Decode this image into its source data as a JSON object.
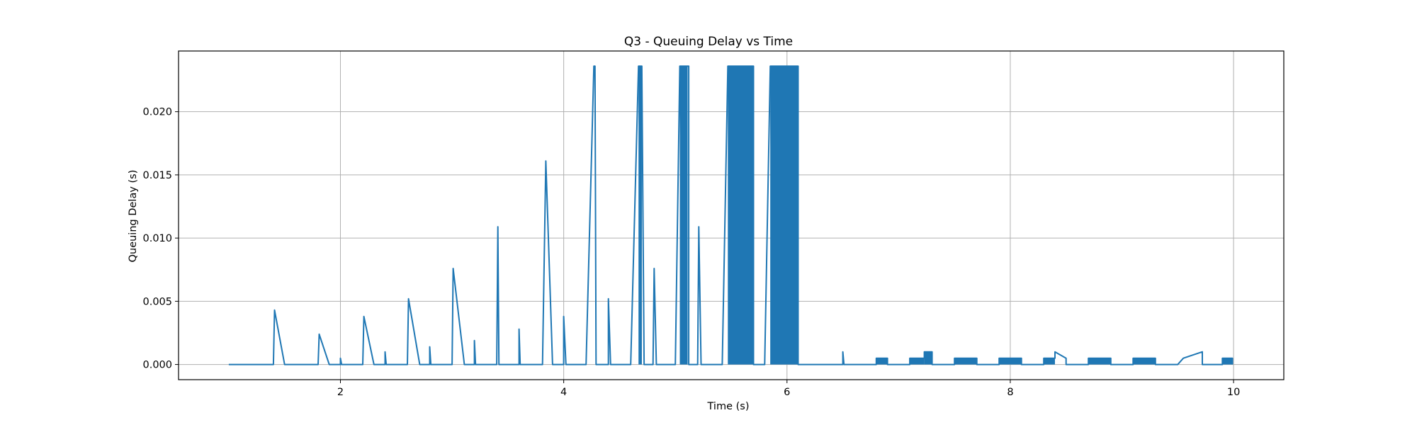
{
  "chart_data": {
    "type": "line",
    "title": "Q3 - Queuing Delay vs Time",
    "xlabel": "Time (s)",
    "ylabel": "Queuing Delay (s)",
    "xlim": [
      0.55,
      10.45
    ],
    "ylim": [
      -0.0012,
      0.0248
    ],
    "xticks": [
      2,
      4,
      6,
      8,
      10
    ],
    "xtick_labels": [
      "2",
      "4",
      "6",
      "8",
      "10"
    ],
    "yticks": [
      0.0,
      0.005,
      0.01,
      0.015,
      0.02
    ],
    "ytick_labels": [
      "0.000",
      "0.005",
      "0.010",
      "0.015",
      "0.020"
    ],
    "grid": true,
    "series": [
      {
        "color": "#1f77b4",
        "x": [
          1.0,
          1.4,
          1.41,
          1.5,
          1.8,
          1.81,
          1.9,
          2.0,
          2.0,
          2.01,
          2.2,
          2.21,
          2.3,
          2.4,
          2.4,
          2.41,
          2.6,
          2.61,
          2.71,
          2.8,
          2.8,
          2.81,
          3.0,
          3.01,
          3.11,
          3.2,
          3.2,
          3.21,
          3.4,
          3.41,
          3.42,
          3.51,
          3.6,
          3.6,
          3.61,
          3.8,
          3.81,
          3.84,
          3.9,
          4.0,
          4.0,
          4.02,
          4.2,
          4.27,
          4.28,
          4.29,
          4.32,
          4.4,
          4.4,
          4.42,
          4.6,
          4.67,
          4.67,
          4.7,
          4.72,
          4.8,
          4.81,
          4.83,
          5.0,
          5.04,
          5.11,
          5.12,
          5.12,
          5.2,
          5.21,
          5.23,
          5.24,
          5.42,
          5.47,
          5.5,
          5.5,
          5.7,
          5.7,
          5.8,
          5.85,
          6.1,
          6.1,
          6.5,
          6.5,
          6.51,
          6.8,
          6.8,
          6.9,
          6.9,
          7.1,
          7.1,
          7.23,
          7.23,
          7.3,
          7.3,
          7.5,
          7.5,
          7.7,
          7.7,
          7.9,
          7.9,
          8.1,
          8.1,
          8.3,
          8.3,
          8.4,
          8.4,
          8.5,
          8.5,
          8.7,
          8.7,
          8.9,
          8.9,
          9.1,
          9.1,
          9.3,
          9.3,
          9.5,
          9.55,
          9.55,
          9.72,
          9.72,
          9.9,
          9.9,
          9.99,
          9.99
        ],
        "y": [
          0.0,
          0.0,
          0.0043,
          0.0,
          0.0,
          0.0024,
          0.0,
          0.0,
          0.0005,
          0.0,
          0.0,
          0.0038,
          0.0,
          0.0,
          0.001,
          0.0,
          0.0,
          0.0052,
          0.0,
          0.0,
          0.0014,
          0.0,
          0.0,
          0.0076,
          0.0,
          0.0,
          0.0019,
          0.0,
          0.0,
          0.0109,
          0.0,
          0.0,
          0.0,
          0.0028,
          0.0,
          0.0,
          0.0,
          0.0161,
          0.0,
          0.0,
          0.0038,
          0.0,
          0.0,
          0.0236,
          0.0236,
          0.0,
          0.0,
          0.0,
          0.0052,
          0.0,
          0.0,
          0.0236,
          0.0236,
          0.0236,
          0.0,
          0.0,
          0.0076,
          0.0,
          0.0,
          0.0236,
          0.0236,
          0.0236,
          0.0,
          0.0,
          0.0109,
          0.0,
          0.0,
          0.0,
          0.0236,
          0.0236,
          0.0236,
          0.0236,
          0.0,
          0.0,
          0.0236,
          0.0236,
          0.0,
          0.0,
          0.001,
          0.0,
          0.0,
          0.0005,
          0.0005,
          0.0,
          0.0,
          0.0005,
          0.0005,
          0.001,
          0.001,
          0.0,
          0.0,
          0.0005,
          0.0005,
          0.0,
          0.0,
          0.0005,
          0.0005,
          0.0,
          0.0,
          0.0005,
          0.0005,
          0.001,
          0.0005,
          0.0,
          0.0,
          0.0005,
          0.0005,
          0.0,
          0.0,
          0.0005,
          0.0005,
          0.0,
          0.0,
          0.0005,
          0.0005,
          0.001,
          0.0,
          0.0,
          0.0005,
          0.0005,
          0.0
        ]
      }
    ]
  }
}
